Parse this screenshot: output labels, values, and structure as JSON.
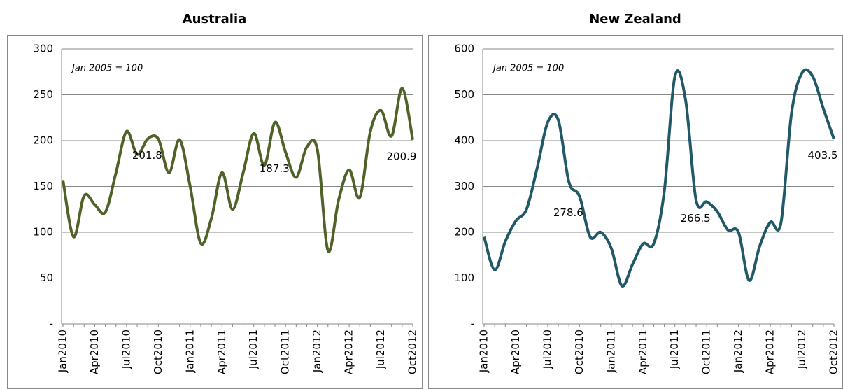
{
  "chart_data": [
    {
      "type": "line",
      "title": "Australia",
      "note": "Jan 2005 = 100",
      "categories": [
        "Jan2010",
        null,
        null,
        "Apr2010",
        null,
        null,
        "Jul2010",
        null,
        null,
        "Oct2010",
        null,
        null,
        "Jan2011",
        null,
        null,
        "Apr2011",
        null,
        null,
        "Jul2011",
        null,
        null,
        "Oct2011",
        null,
        null,
        "Jan2012",
        null,
        null,
        "Apr2012",
        null,
        null,
        "Jul2012",
        null,
        null,
        "Oct2012"
      ],
      "series": [
        {
          "name": "Australia",
          "color": "#4f6228",
          "values": [
            157,
            95,
            140,
            130,
            122,
            165,
            210,
            185,
            202,
            201.8,
            165,
            201,
            150,
            88,
            115,
            165,
            125,
            165,
            208,
            173,
            220,
            187.3,
            160,
            193,
            190,
            80,
            135,
            168,
            138,
            210,
            233,
            205,
            257,
            200.9
          ],
          "value_labels": [
            null,
            null,
            null,
            null,
            null,
            null,
            null,
            null,
            null,
            "201.8",
            null,
            null,
            null,
            null,
            null,
            null,
            null,
            null,
            null,
            null,
            null,
            "187.3",
            null,
            null,
            null,
            null,
            null,
            null,
            null,
            null,
            null,
            null,
            null,
            "200.9"
          ]
        }
      ],
      "ylim": [
        0,
        300
      ],
      "yticks": [
        {
          "value": 0,
          "label": "-"
        },
        50,
        100,
        150,
        200,
        250,
        300
      ],
      "grid": true
    },
    {
      "type": "line",
      "title": "New Zealand",
      "note": "Jan 2005 = 100",
      "categories": [
        "Jan2010",
        null,
        null,
        "Apr2010",
        null,
        null,
        "Jul2010",
        null,
        null,
        "Oct2010",
        null,
        null,
        "Jan2011",
        null,
        null,
        "Apr2011",
        null,
        null,
        "Jul2011",
        null,
        null,
        "Oct2011",
        null,
        null,
        "Jan2012",
        null,
        null,
        "Apr2012",
        null,
        null,
        "Jul2012",
        null,
        null,
        "Oct2012"
      ],
      "series": [
        {
          "name": "New Zealand",
          "color": "#215968",
          "values": [
            190,
            118,
            180,
            225,
            250,
            340,
            440,
            445,
            310,
            278.6,
            190,
            200,
            165,
            83,
            130,
            175,
            175,
            290,
            540,
            490,
            270,
            266.5,
            245,
            205,
            200,
            95,
            170,
            222,
            220,
            460,
            548,
            540,
            470,
            403.5
          ],
          "value_labels": [
            null,
            null,
            null,
            null,
            null,
            null,
            null,
            null,
            null,
            "278.6",
            null,
            null,
            null,
            null,
            null,
            null,
            null,
            null,
            null,
            null,
            null,
            "266.5",
            null,
            null,
            null,
            null,
            null,
            null,
            null,
            null,
            null,
            null,
            null,
            "403.5"
          ]
        }
      ],
      "ylim": [
        0,
        600
      ],
      "yticks": [
        {
          "value": 0,
          "label": "-"
        },
        100,
        200,
        300,
        400,
        500,
        600
      ],
      "grid": true
    }
  ]
}
